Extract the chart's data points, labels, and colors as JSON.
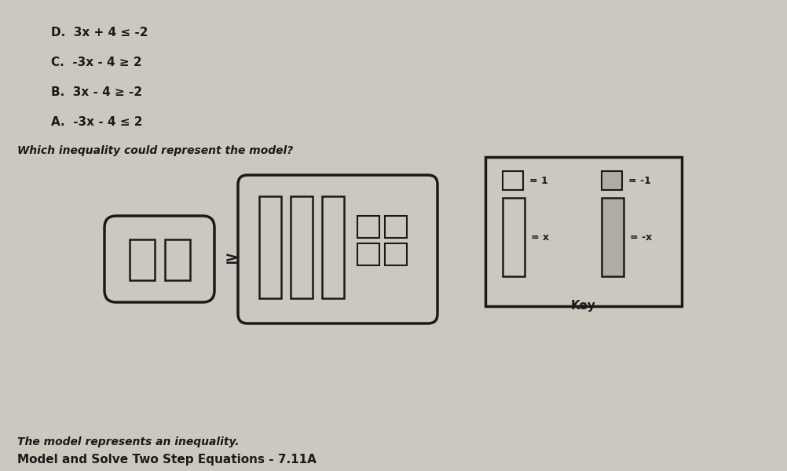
{
  "title": "Model and Solve Two Step Equations - 7.11A",
  "subtitle": "The model represents an inequality.",
  "question": "Which inequality could represent the model?",
  "choices": [
    "A.  -3x - 4 ≤ 2",
    "B.  3x - 4 ≥ -2",
    "C.  -3x - 4 ≥ 2",
    "D.  3x + 4 ≤ -2"
  ],
  "key_title": "Key",
  "key_x_label": "= x",
  "key_neg_x_label": "= -x",
  "key_one_label": "= 1",
  "key_neg_one_label": "= -1",
  "bg_color": "#ccc8bf",
  "paper_color": "#d8d4cc",
  "text_color": "#1a1a1a",
  "box_edge_color": "#1a1a1a",
  "tile_fill": "#d8d4cc",
  "shade_fill": "#b0aca4"
}
